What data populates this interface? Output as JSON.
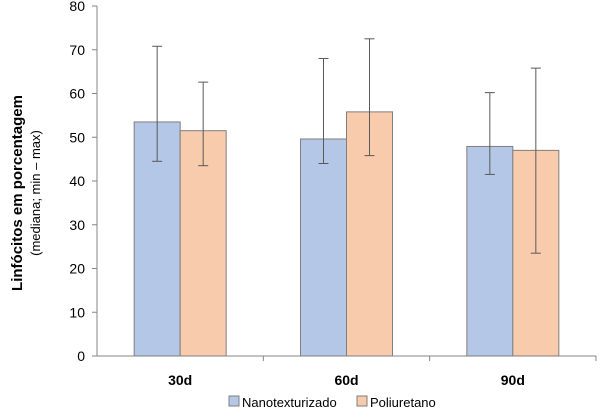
{
  "chart_data": {
    "type": "bar",
    "categories": [
      "30d",
      "60d",
      "90d"
    ],
    "series": [
      {
        "name": "Nanotexturizado",
        "values": [
          53.5,
          49.6,
          47.9
        ],
        "error_min": [
          44.5,
          44.0,
          41.5
        ],
        "error_max": [
          70.8,
          68.0,
          60.2
        ],
        "color": "#b4c7e7"
      },
      {
        "name": "Poliuretano",
        "values": [
          51.5,
          55.8,
          47.0
        ],
        "error_min": [
          43.5,
          45.8,
          23.5
        ],
        "error_max": [
          62.6,
          72.5,
          65.8
        ],
        "color": "#f8cbad"
      }
    ],
    "ylabel": "Linfócitos em porcentagem",
    "ylabel_sub": "(mediana;  min – max)",
    "ylim": [
      0,
      80
    ],
    "yticks": [
      0,
      10,
      20,
      30,
      40,
      50,
      60,
      70,
      80
    ],
    "legend_position": "bottom",
    "bar_edge_color": "#7f7f7f"
  }
}
